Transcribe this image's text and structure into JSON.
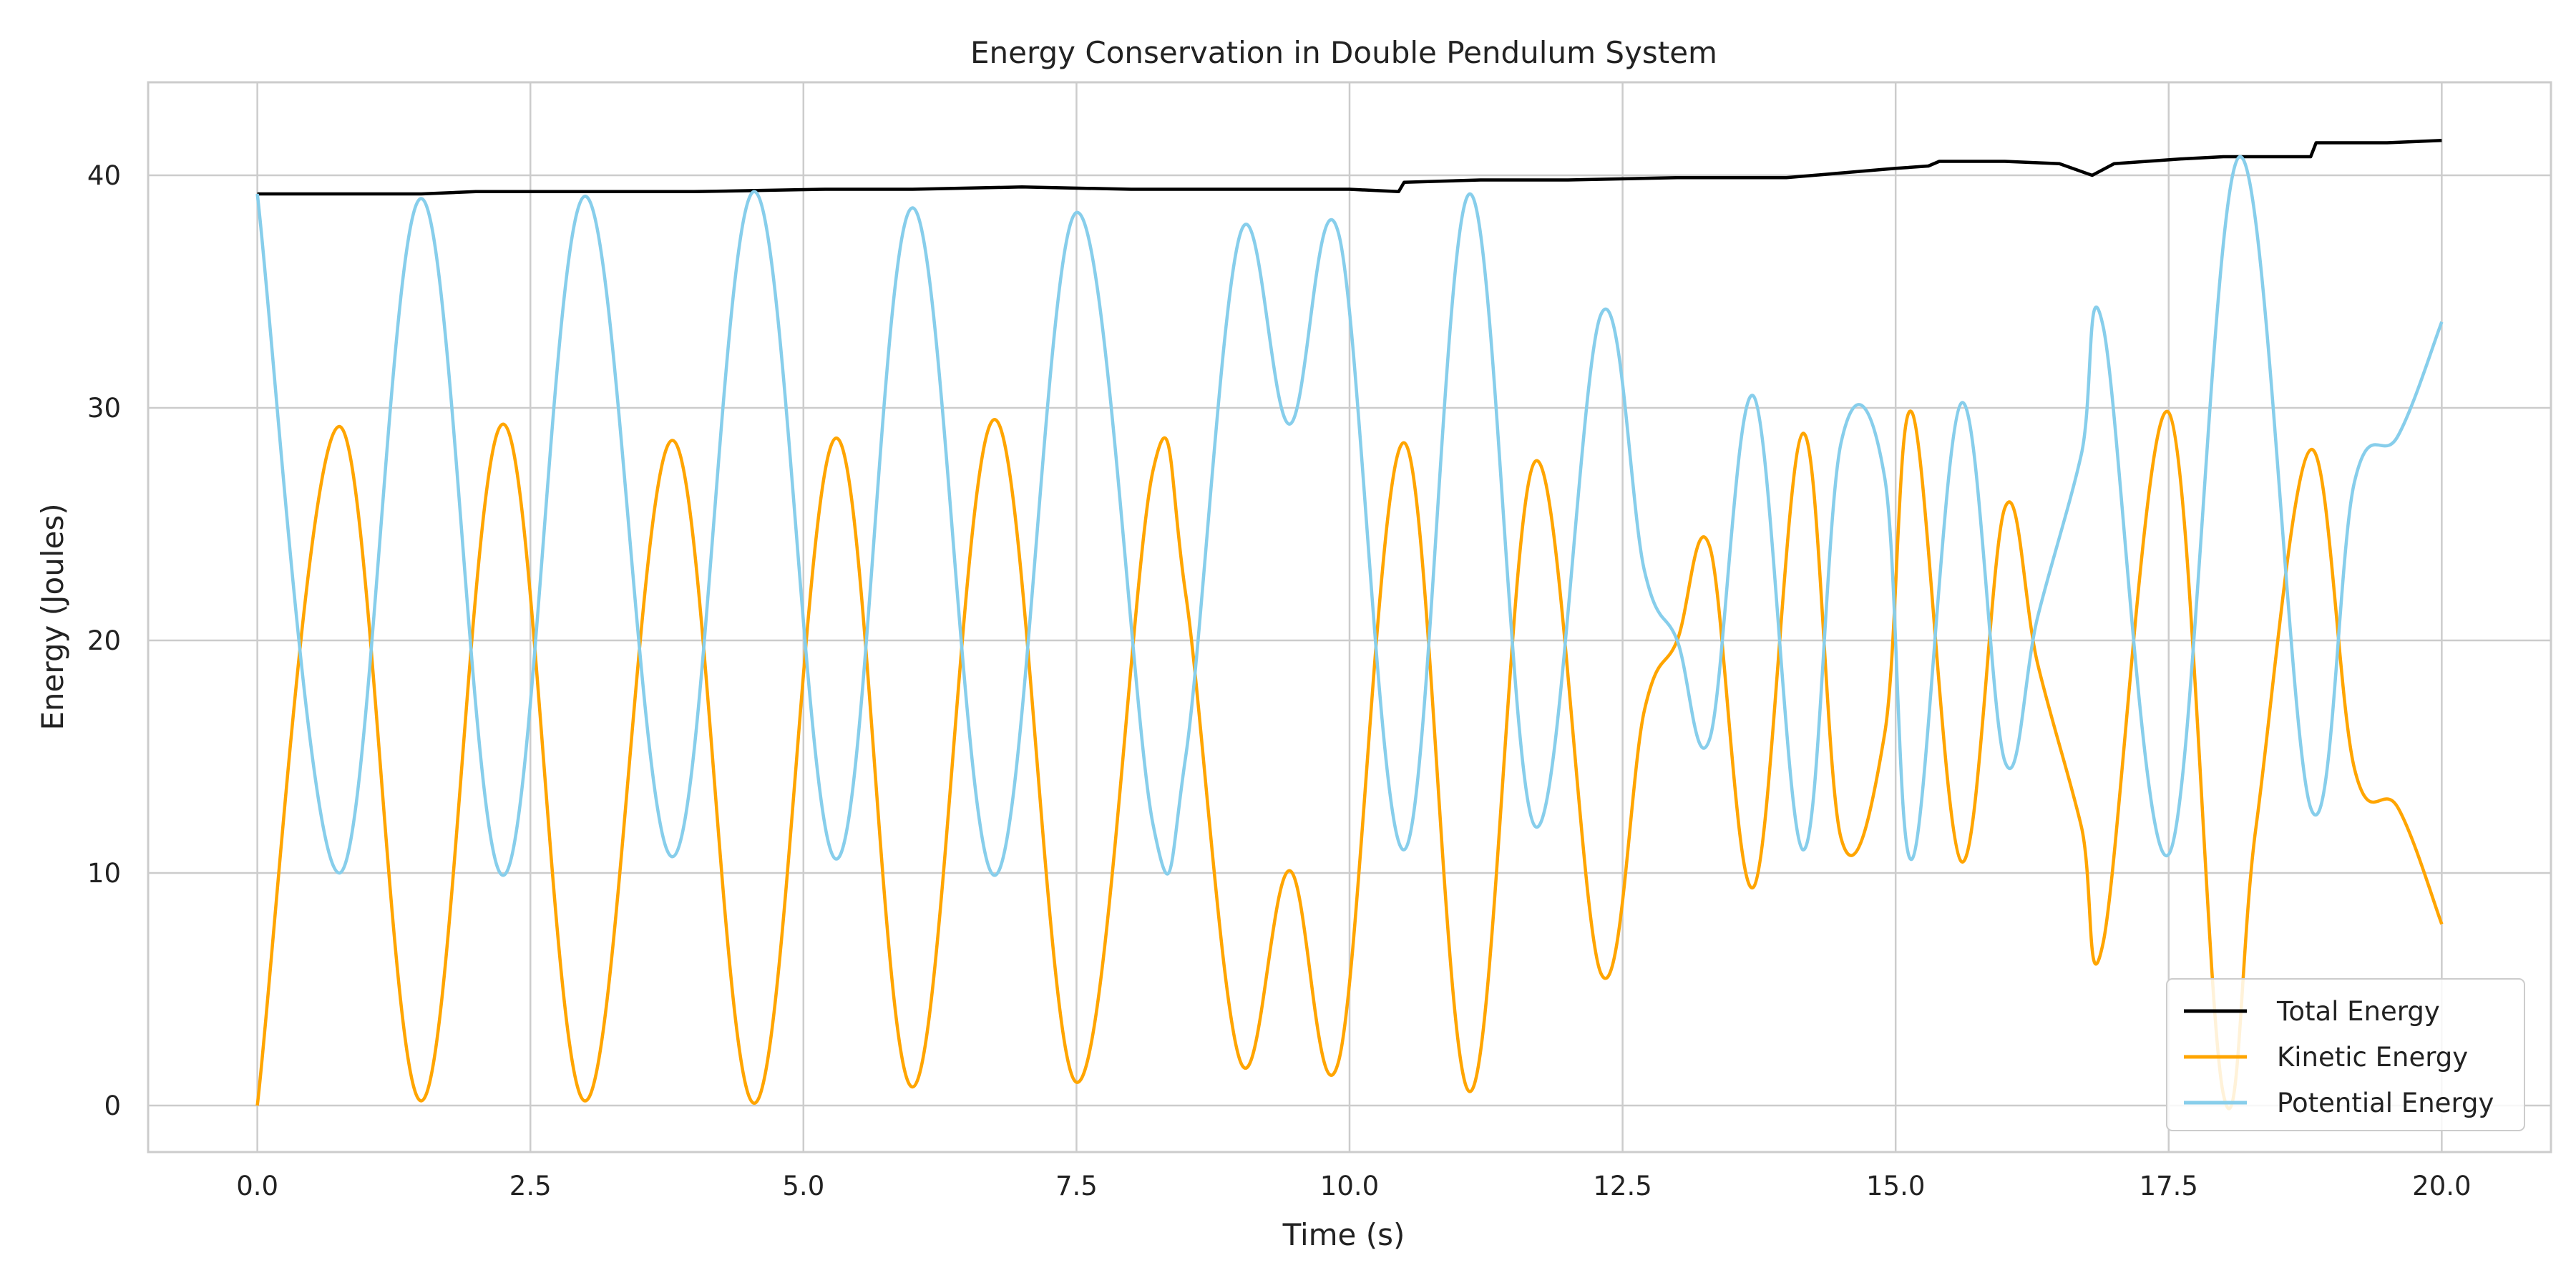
{
  "chart_data": {
    "type": "line",
    "title": "Energy Conservation in Double Pendulum System",
    "xlabel": "Time (s)",
    "ylabel": "Energy (Joules)",
    "xlim": [
      -1.0,
      21.0
    ],
    "ylim": [
      -2.0,
      44.0
    ],
    "x_ticks": [
      0.0,
      2.5,
      5.0,
      7.5,
      10.0,
      12.5,
      15.0,
      17.5,
      20.0
    ],
    "x_tick_labels": [
      "0.0",
      "2.5",
      "5.0",
      "7.5",
      "10.0",
      "12.5",
      "15.0",
      "17.5",
      "20.0"
    ],
    "y_ticks": [
      0,
      10,
      20,
      30,
      40
    ],
    "y_tick_labels": [
      "0",
      "10",
      "20",
      "30",
      "40"
    ],
    "grid": true,
    "legend_position": "lower-right",
    "series": [
      {
        "name": "Total Energy",
        "color": "#000000",
        "points": [
          [
            0.0,
            39.2
          ],
          [
            1.5,
            39.2
          ],
          [
            2.0,
            39.3
          ],
          [
            4.0,
            39.3
          ],
          [
            5.2,
            39.4
          ],
          [
            6.0,
            39.4
          ],
          [
            7.0,
            39.5
          ],
          [
            8.0,
            39.4
          ],
          [
            9.0,
            39.4
          ],
          [
            10.0,
            39.4
          ],
          [
            10.45,
            39.3
          ],
          [
            10.5,
            39.7
          ],
          [
            11.2,
            39.8
          ],
          [
            12.0,
            39.8
          ],
          [
            13.0,
            39.9
          ],
          [
            14.0,
            39.9
          ],
          [
            14.5,
            40.1
          ],
          [
            15.0,
            40.3
          ],
          [
            15.3,
            40.4
          ],
          [
            15.4,
            40.6
          ],
          [
            16.0,
            40.6
          ],
          [
            16.5,
            40.5
          ],
          [
            16.8,
            40.0
          ],
          [
            17.0,
            40.5
          ],
          [
            17.6,
            40.7
          ],
          [
            18.0,
            40.8
          ],
          [
            18.8,
            40.8
          ],
          [
            18.85,
            41.4
          ],
          [
            19.5,
            41.4
          ],
          [
            20.0,
            41.5
          ]
        ]
      },
      {
        "name": "Kinetic Energy",
        "color": "#ffa500",
        "points": [
          [
            0.0,
            0.0
          ],
          [
            0.75,
            29.2
          ],
          [
            1.5,
            0.2
          ],
          [
            2.25,
            29.3
          ],
          [
            3.0,
            0.2
          ],
          [
            3.8,
            28.6
          ],
          [
            4.55,
            0.1
          ],
          [
            5.3,
            28.7
          ],
          [
            6.0,
            0.8
          ],
          [
            6.75,
            29.5
          ],
          [
            7.5,
            1.0
          ],
          [
            8.2,
            27.3
          ],
          [
            8.5,
            22.0
          ],
          [
            9.0,
            1.9
          ],
          [
            9.45,
            10.1
          ],
          [
            9.9,
            1.9
          ],
          [
            10.5,
            28.5
          ],
          [
            11.1,
            0.6
          ],
          [
            11.7,
            27.7
          ],
          [
            12.3,
            5.7
          ],
          [
            12.7,
            17.0
          ],
          [
            13.0,
            20.0
          ],
          [
            13.3,
            24.0
          ],
          [
            13.7,
            9.4
          ],
          [
            14.15,
            28.9
          ],
          [
            14.5,
            11.5
          ],
          [
            14.9,
            16.0
          ],
          [
            15.15,
            29.8
          ],
          [
            15.6,
            10.5
          ],
          [
            16.0,
            25.7
          ],
          [
            16.3,
            19.0
          ],
          [
            16.7,
            12.0
          ],
          [
            16.9,
            7.0
          ],
          [
            17.5,
            29.8
          ],
          [
            18.0,
            0.5
          ],
          [
            18.3,
            12.0
          ],
          [
            18.8,
            28.2
          ],
          [
            19.2,
            14.5
          ],
          [
            19.6,
            12.8
          ],
          [
            20.0,
            7.8
          ]
        ]
      },
      {
        "name": "Potential Energy",
        "color": "#87ceeb",
        "points": [
          [
            0.0,
            39.2
          ],
          [
            0.75,
            10.0
          ],
          [
            1.5,
            39.0
          ],
          [
            2.25,
            9.9
          ],
          [
            3.0,
            39.1
          ],
          [
            3.8,
            10.7
          ],
          [
            4.55,
            39.3
          ],
          [
            5.3,
            10.6
          ],
          [
            6.0,
            38.6
          ],
          [
            6.75,
            9.9
          ],
          [
            7.5,
            38.4
          ],
          [
            8.2,
            12.1
          ],
          [
            8.5,
            15.0
          ],
          [
            9.0,
            37.5
          ],
          [
            9.45,
            29.3
          ],
          [
            9.9,
            37.5
          ],
          [
            10.5,
            11.0
          ],
          [
            11.1,
            39.2
          ],
          [
            11.7,
            12.0
          ],
          [
            12.3,
            34.0
          ],
          [
            12.7,
            23.0
          ],
          [
            13.0,
            20.0
          ],
          [
            13.3,
            15.8
          ],
          [
            13.7,
            30.5
          ],
          [
            14.15,
            11.0
          ],
          [
            14.5,
            28.5
          ],
          [
            14.9,
            27.0
          ],
          [
            15.15,
            10.6
          ],
          [
            15.6,
            30.2
          ],
          [
            16.0,
            14.8
          ],
          [
            16.3,
            21.0
          ],
          [
            16.7,
            28.0
          ],
          [
            16.9,
            33.5
          ],
          [
            17.5,
            10.8
          ],
          [
            18.15,
            40.8
          ],
          [
            18.8,
            12.8
          ],
          [
            19.2,
            26.8
          ],
          [
            19.6,
            28.8
          ],
          [
            20.0,
            33.7
          ]
        ]
      }
    ]
  }
}
